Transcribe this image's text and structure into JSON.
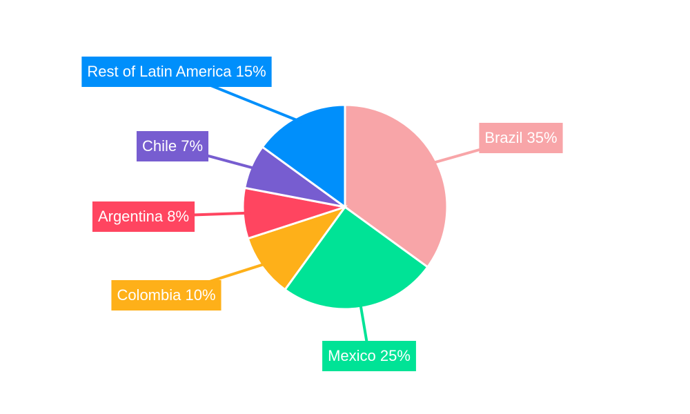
{
  "chart_data": {
    "type": "pie",
    "categories": [
      "Brazil",
      "Mexico",
      "Colombia",
      "Argentina",
      "Chile",
      "Rest of Latin America"
    ],
    "values": [
      35,
      25,
      10,
      8,
      7,
      15
    ],
    "value_labels": [
      "35%",
      "25%",
      "10%",
      "8%",
      "7%",
      "15%"
    ],
    "colors": [
      "#f8a5a8",
      "#00e396",
      "#feb019",
      "#ff4560",
      "#775dd0",
      "#008ffb"
    ]
  }
}
